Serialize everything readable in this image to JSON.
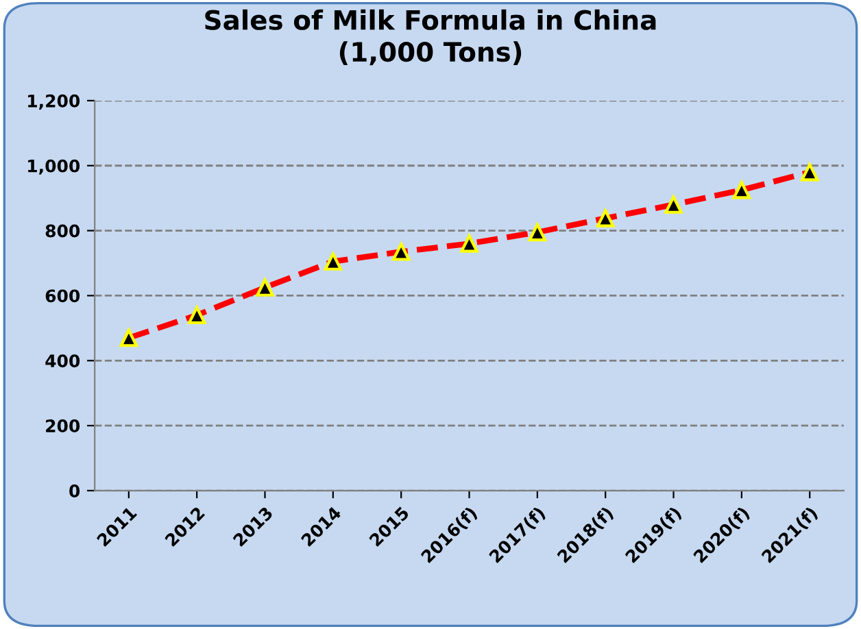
{
  "chart_data": {
    "type": "line",
    "title": "Sales of Milk Formula in China\n(1,000 Tons)",
    "categories": [
      "2011",
      "2012",
      "2013",
      "2014",
      "2015",
      "2016(f)",
      "2017(f)",
      "2018(f)",
      "2019(f)",
      "2020(f)",
      "2021(f)"
    ],
    "series": [
      {
        "color": "#ff0000",
        "values": [
          470,
          540,
          625,
          705,
          735,
          760,
          795,
          838,
          880,
          925,
          980
        ]
      }
    ],
    "ylim": [
      0,
      1200
    ],
    "yticks": [
      {
        "value": 0,
        "label": "0"
      },
      {
        "value": 200,
        "label": "200"
      },
      {
        "value": 400,
        "label": "400"
      },
      {
        "value": 600,
        "label": "600"
      },
      {
        "value": 800,
        "label": "800"
      },
      {
        "value": 1000,
        "label": "1,000"
      },
      {
        "value": 1200,
        "label": "1,200"
      }
    ],
    "grid": "y",
    "marker": "triangle",
    "line_style": "dashed"
  }
}
